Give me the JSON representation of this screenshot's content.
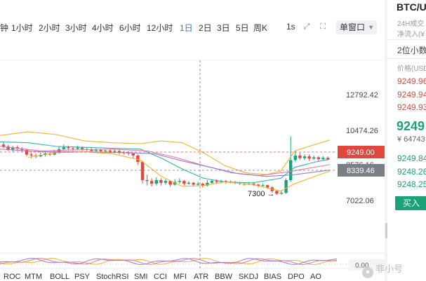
{
  "toolbar": {
    "timeframes": [
      {
        "label": "分钟",
        "shown": "钟"
      },
      {
        "label": "1小时"
      },
      {
        "label": "2小时"
      },
      {
        "label": "3小时"
      },
      {
        "label": "4小时"
      },
      {
        "label": "6小时"
      },
      {
        "label": "12小时"
      },
      {
        "label": "1日",
        "active": true
      },
      {
        "label": "2日"
      },
      {
        "label": "3日"
      },
      {
        "label": "5日"
      },
      {
        "label": "周K"
      }
    ],
    "interval_1s": "1s",
    "window_select": "单窗口",
    "icons": [
      "expand-icon",
      "fullscreen-icon"
    ]
  },
  "chart": {
    "price_axis_labels": [
      "12792.42",
      "10474.26",
      "8576.16",
      "7022.06"
    ],
    "current_price_tag": "9249.00",
    "cursor_price_tag": "8339.46",
    "low_annotation": "7300",
    "oscillator_label": "0.00",
    "colors": {
      "up": "#1aa37a",
      "down": "#e0473d",
      "ma_yellow": "#f4b22a",
      "ma_teal": "#2bb3b0",
      "ma_pink": "#e7799f",
      "ma_purple": "#9b79d6",
      "price_tag_bg": "#e0473d",
      "cursor_tag_bg": "#7a7f87"
    }
  },
  "indicators": [
    "ROC",
    "MTM",
    "BOLL",
    "PSY",
    "StochRSI",
    "SMI",
    "CCI",
    "MFI",
    "ATR",
    "BBW",
    "SKDJ",
    "BIAS",
    "DPO",
    "AO"
  ],
  "panel": {
    "title": "BTC/USDT",
    "title_shown": "BTC/U",
    "vol_label": "24H成交",
    "inflow_label": "净流入(¥",
    "precision": "2位小数",
    "price_header": "价格(USDT)",
    "asks": [
      "9249.96",
      "9249.94",
      "9249.93"
    ],
    "last_price": "9249",
    "fiat_price": "¥ 64743",
    "bids": [
      "9249.84",
      "9248.26",
      "9248.25"
    ],
    "buy_label": "买入"
  },
  "watermark": "非小号"
}
